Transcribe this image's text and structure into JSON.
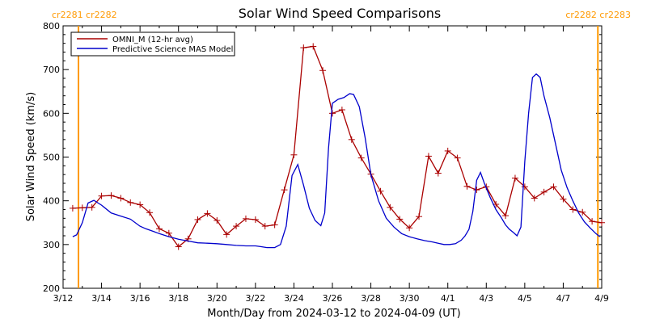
{
  "chart_data": {
    "type": "line",
    "title": "Solar Wind Speed Comparisons",
    "xlabel": "Month/Day from 2024-03-12 to 2024-04-09 (UT)",
    "ylabel": "Solar Wind Speed (km/s)",
    "xlim": [
      0,
      28
    ],
    "ylim": [
      200,
      800
    ],
    "y_ticks": [
      200,
      300,
      400,
      500,
      600,
      700,
      800
    ],
    "x_ticks": [
      {
        "day": 0,
        "label": "3/12"
      },
      {
        "day": 2,
        "label": "3/14"
      },
      {
        "day": 4,
        "label": "3/16"
      },
      {
        "day": 6,
        "label": "3/18"
      },
      {
        "day": 8,
        "label": "3/20"
      },
      {
        "day": 10,
        "label": "3/22"
      },
      {
        "day": 12,
        "label": "3/24"
      },
      {
        "day": 14,
        "label": "3/26"
      },
      {
        "day": 16,
        "label": "3/28"
      },
      {
        "day": 18,
        "label": "3/30"
      },
      {
        "day": 20,
        "label": "4/1"
      },
      {
        "day": 22,
        "label": "4/3"
      },
      {
        "day": 24,
        "label": "4/5"
      },
      {
        "day": 26,
        "label": "4/7"
      },
      {
        "day": 28,
        "label": "4/9"
      }
    ],
    "carrington_markers": [
      {
        "day": 0.8,
        "label": "cr2281 cr2282",
        "anchor": "left"
      },
      {
        "day": 27.8,
        "label": "cr2282 cr2283",
        "anchor": "right"
      }
    ],
    "marker_color": "#FF9900",
    "legend": {
      "placement": "top-left"
    },
    "series": [
      {
        "name": "OMNI_M (12-hr avg)",
        "color": "#AA0000",
        "markers": "plus",
        "x": [
          0.5,
          1.0,
          1.5,
          2.0,
          2.5,
          3.0,
          3.5,
          4.0,
          4.5,
          5.0,
          5.5,
          6.0,
          6.5,
          7.0,
          7.5,
          8.0,
          8.5,
          9.0,
          9.5,
          10.0,
          10.5,
          11.0,
          11.5,
          12.0,
          12.5,
          13.0,
          13.5,
          14.0,
          14.5,
          15.0,
          15.5,
          16.0,
          16.5,
          17.0,
          17.5,
          18.0,
          18.5,
          19.0,
          19.5,
          20.0,
          20.5,
          21.0,
          21.5,
          22.0,
          22.5,
          23.0,
          23.5,
          24.0,
          24.5,
          25.0,
          25.5,
          26.0,
          26.5,
          27.0,
          27.5,
          28.0
        ],
        "values": [
          383,
          384,
          385,
          411,
          412,
          406,
          396,
          391,
          373,
          336,
          326,
          295,
          313,
          357,
          371,
          355,
          323,
          342,
          359,
          357,
          342,
          345,
          425,
          505,
          750,
          753,
          698,
          600,
          608,
          540,
          498,
          461,
          422,
          385,
          358,
          338,
          364,
          502,
          463,
          514,
          498,
          433,
          425,
          432,
          392,
          366,
          452,
          432,
          406,
          420,
          432,
          404,
          380,
          374,
          353,
          350
        ]
      },
      {
        "name": "Predictive Science MAS Model",
        "color": "#0000CC",
        "markers": "none",
        "x": [
          0.5,
          0.7,
          1.0,
          1.3,
          1.6,
          2.0,
          2.5,
          3.0,
          3.5,
          4.0,
          4.3,
          4.7,
          5.0,
          5.5,
          6.0,
          6.5,
          7.0,
          7.5,
          8.0,
          8.5,
          9.0,
          9.5,
          10.0,
          10.3,
          10.6,
          11.0,
          11.3,
          11.6,
          11.9,
          12.2,
          12.5,
          12.8,
          13.1,
          13.4,
          13.6,
          13.8,
          14.0,
          14.3,
          14.6,
          14.9,
          15.1,
          15.4,
          15.7,
          16.0,
          16.4,
          16.8,
          17.2,
          17.6,
          18.0,
          18.4,
          18.8,
          19.2,
          19.5,
          19.8,
          20.1,
          20.4,
          20.7,
          20.9,
          21.1,
          21.3,
          21.5,
          21.7,
          21.9,
          22.2,
          22.5,
          22.8,
          23.0,
          23.2,
          23.4,
          23.6,
          23.8,
          24.0,
          24.2,
          24.4,
          24.6,
          24.8,
          25.0,
          25.3,
          25.6,
          25.9,
          26.2,
          26.5,
          26.8,
          27.1,
          27.4,
          27.7,
          27.9
        ],
        "values": [
          318,
          322,
          350,
          395,
          401,
          390,
          372,
          365,
          358,
          342,
          336,
          330,
          325,
          318,
          312,
          308,
          304,
          303,
          302,
          300,
          298,
          297,
          297,
          295,
          293,
          293,
          300,
          342,
          458,
          483,
          436,
          383,
          355,
          343,
          372,
          520,
          623,
          632,
          636,
          645,
          643,
          615,
          545,
          460,
          400,
          360,
          340,
          325,
          318,
          313,
          309,
          306,
          303,
          300,
          300,
          302,
          310,
          320,
          335,
          375,
          447,
          465,
          440,
          408,
          380,
          360,
          345,
          335,
          328,
          320,
          340,
          490,
          600,
          682,
          690,
          682,
          640,
          590,
          530,
          470,
          430,
          400,
          372,
          352,
          338,
          325,
          318
        ]
      }
    ]
  }
}
